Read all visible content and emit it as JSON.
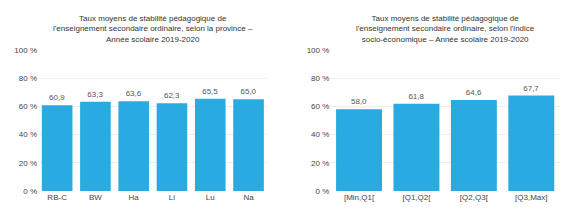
{
  "chart_data": [
    {
      "type": "bar",
      "title": "Taux moyens de stabilité pédagogique de\nl'enseignement secondaire ordinaire, selon la province –\nAnnée scolaire 2019-2020",
      "categories": [
        "RB-C",
        "BW",
        "Ha",
        "Li",
        "Lu",
        "Na"
      ],
      "values": [
        60.9,
        63.3,
        63.6,
        62.3,
        65.5,
        65.0
      ],
      "value_labels": [
        "60,9",
        "63,3",
        "63,6",
        "62,3",
        "65,5",
        "65,0"
      ],
      "data_labels": true,
      "color": "#29ABE2",
      "ylim": [
        0,
        100
      ],
      "yticks": [
        {
          "value": 0,
          "label": "0 %"
        },
        {
          "value": 20,
          "label": "20 %"
        },
        {
          "value": 40,
          "label": "40 %"
        },
        {
          "value": 60,
          "label": "60 %"
        },
        {
          "value": 80,
          "label": "80 %"
        },
        {
          "value": 100,
          "label": "100 %"
        }
      ],
      "grid": true
    },
    {
      "type": "bar",
      "title": "Taux moyens de stabilité pédagogique de\nl'enseignement secondaire ordinaire, selon l'indice\nsocio-économique – Année scolaire 2019-2020",
      "categories": [
        "[Min,Q1[",
        "[Q1,Q2[",
        "[Q2,Q3[",
        "[Q3,Max]"
      ],
      "values": [
        58.0,
        61.8,
        64.6,
        67.7
      ],
      "value_labels": [
        "58,0",
        "61,8",
        "64,6",
        "67,7"
      ],
      "data_labels": true,
      "color": "#29ABE2",
      "ylim": [
        0,
        100
      ],
      "yticks": [
        {
          "value": 0,
          "label": "0 %"
        },
        {
          "value": 20,
          "label": "20 %"
        },
        {
          "value": 40,
          "label": "40 %"
        },
        {
          "value": 60,
          "label": "60 %"
        },
        {
          "value": 80,
          "label": "80 %"
        },
        {
          "value": 100,
          "label": "100 %"
        }
      ],
      "grid": true
    }
  ]
}
